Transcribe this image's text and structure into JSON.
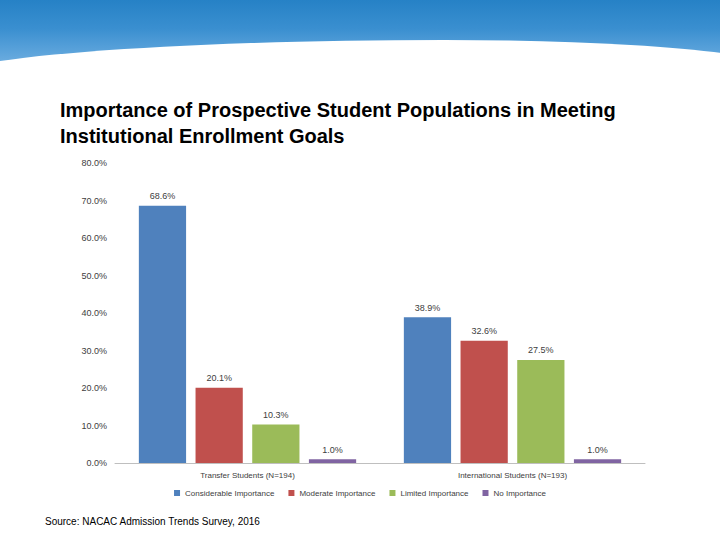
{
  "chart_data": {
    "type": "bar",
    "title": "Importance of Prospective Student Populations in Meeting Institutional Enrollment Goals",
    "annotations": [
      "Source: NACAC Admission Trends Survey, 2016"
    ],
    "categories": [
      "Transfer Students (N=194)",
      "International Students (N=193)"
    ],
    "series": [
      {
        "name": "Considerable Importance",
        "color": "#4f81bd",
        "values": [
          68.6,
          38.9
        ],
        "value_labels": [
          "68.6%",
          "38.9%"
        ]
      },
      {
        "name": "Moderate Importance",
        "color": "#c0504d",
        "values": [
          20.1,
          32.6
        ],
        "value_labels": [
          "20.1%",
          "32.6%"
        ]
      },
      {
        "name": "Limited Importance",
        "color": "#9bbb59",
        "values": [
          10.3,
          27.5
        ],
        "value_labels": [
          "10.3%",
          "27.5%"
        ]
      },
      {
        "name": "No Importance",
        "color": "#8064a2",
        "values": [
          1.0,
          1.0
        ],
        "value_labels": [
          "1.0%",
          "1.0%"
        ]
      }
    ],
    "ylim": [
      0,
      80
    ],
    "yticks": [
      {
        "value": 0,
        "label": "0.0%"
      },
      {
        "value": 10,
        "label": "10.0%"
      },
      {
        "value": 20,
        "label": "20.0%"
      },
      {
        "value": 30,
        "label": "30.0%"
      },
      {
        "value": 40,
        "label": "40.0%"
      },
      {
        "value": 50,
        "label": "50.0%"
      },
      {
        "value": 60,
        "label": "60.0%"
      },
      {
        "value": 70,
        "label": "70.0%"
      },
      {
        "value": 80,
        "label": "80.0%"
      }
    ],
    "grid": false,
    "legend": "bottom",
    "data_labels": true
  }
}
